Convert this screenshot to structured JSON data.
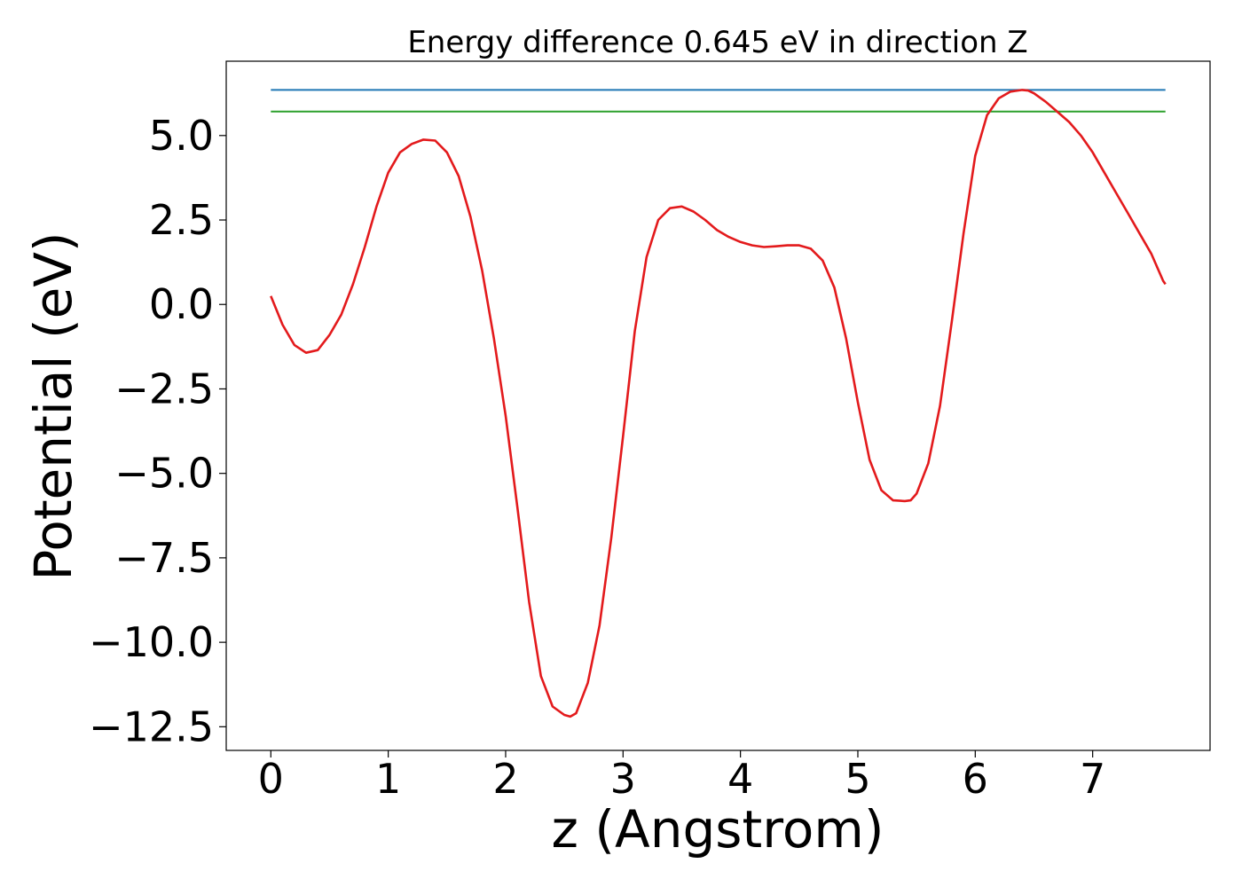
{
  "chart_data": {
    "type": "line",
    "title": "Energy difference 0.645 eV in direction Z",
    "xlabel": "z (Angstrom)",
    "ylabel": "Potential (eV)",
    "xlim": [
      -0.38,
      8.0
    ],
    "ylim": [
      -13.2,
      7.2
    ],
    "xticks": [
      0,
      1,
      2,
      3,
      4,
      5,
      6,
      7
    ],
    "xtick_labels": [
      "0",
      "1",
      "2",
      "3",
      "4",
      "5",
      "6",
      "7"
    ],
    "yticks": [
      5.0,
      2.5,
      0.0,
      -2.5,
      -5.0,
      -7.5,
      -10.0,
      -12.5
    ],
    "ytick_labels": [
      "5.0",
      "2.5",
      "0.0",
      "−2.5",
      "−5.0",
      "−7.5",
      "−10.0",
      "−12.5"
    ],
    "grid": false,
    "series": [
      {
        "color": "#1f77b4",
        "x": [
          0.0,
          7.62
        ],
        "y": [
          6.35,
          6.35
        ]
      },
      {
        "color": "#2ca02c",
        "x": [
          0.0,
          7.62
        ],
        "y": [
          5.71,
          5.71
        ]
      },
      {
        "color": "#e31a1c",
        "x": [
          0.0,
          0.1,
          0.2,
          0.3,
          0.4,
          0.5,
          0.6,
          0.7,
          0.8,
          0.9,
          1.0,
          1.1,
          1.2,
          1.3,
          1.4,
          1.5,
          1.6,
          1.7,
          1.8,
          1.9,
          2.0,
          2.1,
          2.2,
          2.3,
          2.4,
          2.5,
          2.55,
          2.6,
          2.7,
          2.8,
          2.9,
          3.0,
          3.1,
          3.2,
          3.3,
          3.4,
          3.5,
          3.6,
          3.7,
          3.8,
          3.9,
          4.0,
          4.1,
          4.2,
          4.3,
          4.4,
          4.5,
          4.6,
          4.7,
          4.8,
          4.9,
          5.0,
          5.1,
          5.2,
          5.3,
          5.4,
          5.45,
          5.5,
          5.6,
          5.7,
          5.8,
          5.9,
          6.0,
          6.1,
          6.2,
          6.3,
          6.4,
          6.45,
          6.5,
          6.6,
          6.7,
          6.8,
          6.9,
          7.0,
          7.1,
          7.2,
          7.3,
          7.4,
          7.5,
          7.6,
          7.62
        ],
        "y": [
          0.25,
          -0.6,
          -1.2,
          -1.43,
          -1.35,
          -0.9,
          -0.3,
          0.6,
          1.7,
          2.9,
          3.9,
          4.5,
          4.75,
          4.88,
          4.85,
          4.5,
          3.8,
          2.6,
          1.0,
          -1.0,
          -3.3,
          -6.0,
          -8.8,
          -11.0,
          -11.9,
          -12.15,
          -12.2,
          -12.1,
          -11.2,
          -9.5,
          -6.9,
          -3.9,
          -0.8,
          1.4,
          2.5,
          2.85,
          2.9,
          2.75,
          2.5,
          2.2,
          2.0,
          1.85,
          1.75,
          1.7,
          1.72,
          1.75,
          1.75,
          1.65,
          1.3,
          0.5,
          -1.0,
          -2.9,
          -4.6,
          -5.5,
          -5.8,
          -5.82,
          -5.8,
          -5.6,
          -4.7,
          -3.0,
          -0.5,
          2.1,
          4.4,
          5.6,
          6.1,
          6.3,
          6.35,
          6.33,
          6.25,
          6.0,
          5.7,
          5.4,
          5.0,
          4.5,
          3.9,
          3.3,
          2.7,
          2.1,
          1.5,
          0.7,
          0.6
        ]
      }
    ]
  }
}
